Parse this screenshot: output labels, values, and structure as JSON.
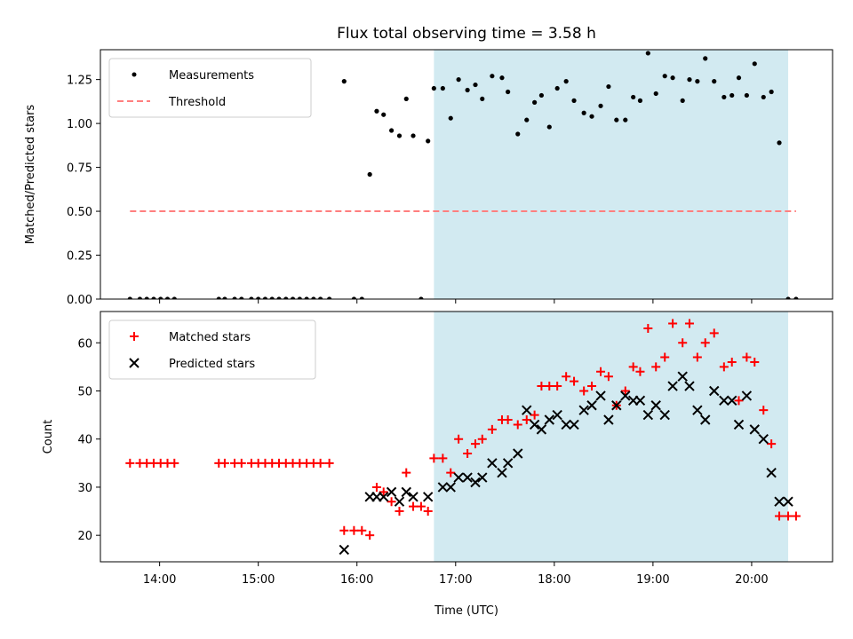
{
  "colors": {
    "highlight": "#add8e6",
    "threshold": "#ff7f7f",
    "measurement": "#000000",
    "matched": "#ff0000",
    "predicted": "#000000"
  },
  "chart_data": {
    "type": "scatter",
    "title": "Flux total observing time = 3.58 h",
    "xlabel": "Time (UTC)",
    "xlim": [
      13.4,
      20.82
    ],
    "x_ticks": [
      14,
      15,
      16,
      17,
      18,
      19,
      20
    ],
    "x_tick_labels": [
      "14:00",
      "15:00",
      "16:00",
      "17:00",
      "18:00",
      "19:00",
      "20:00"
    ],
    "highlight_span": [
      16.78,
      20.37
    ],
    "panels": [
      {
        "ylabel": "Matched/Predicted stars",
        "ylim": [
          0,
          1.42
        ],
        "y_ticks": [
          0,
          0.25,
          0.5,
          0.75,
          1.0,
          1.25
        ],
        "y_tick_labels": [
          "0.00",
          "0.25",
          "0.50",
          "0.75",
          "1.00",
          "1.25"
        ],
        "legend": {
          "placement": "top-left",
          "entries": [
            "Measurements",
            "Threshold"
          ]
        },
        "threshold": {
          "name": "Threshold",
          "value": 0.5,
          "x_range": [
            13.7,
            20.45
          ]
        },
        "series": [
          {
            "name": "Measurements",
            "marker": "dot",
            "x": [
              13.7,
              13.8,
              13.87,
              13.94,
              14.01,
              14.08,
              14.15,
              14.6,
              14.66,
              14.76,
              14.83,
              14.93,
              15.0,
              15.07,
              15.14,
              15.21,
              15.28,
              15.35,
              15.42,
              15.49,
              15.56,
              15.63,
              15.72,
              15.87,
              15.97,
              16.05,
              16.13,
              16.2,
              16.27,
              16.35,
              16.43,
              16.5,
              16.57,
              16.65,
              16.72,
              16.78,
              16.87,
              16.95,
              17.03,
              17.12,
              17.2,
              17.27,
              17.37,
              17.47,
              17.53,
              17.63,
              17.72,
              17.8,
              17.87,
              17.95,
              18.03,
              18.12,
              18.2,
              18.3,
              18.38,
              18.47,
              18.55,
              18.63,
              18.72,
              18.8,
              18.87,
              18.95,
              19.03,
              19.12,
              19.2,
              19.3,
              19.37,
              19.45,
              19.53,
              19.62,
              19.72,
              19.8,
              19.87,
              19.95,
              20.03,
              20.12,
              20.2,
              20.28,
              20.37,
              20.45
            ],
            "y": [
              0,
              0,
              0,
              0,
              0,
              0,
              0,
              0,
              0,
              0,
              0,
              0,
              0,
              0,
              0,
              0,
              0,
              0,
              0,
              0,
              0,
              0,
              0,
              1.24,
              0,
              0,
              0.71,
              1.07,
              1.05,
              0.96,
              0.93,
              1.14,
              0.93,
              0,
              0.9,
              1.2,
              1.2,
              1.03,
              1.25,
              1.19,
              1.22,
              1.14,
              1.27,
              1.26,
              1.18,
              0.94,
              1.02,
              1.12,
              1.16,
              0.98,
              1.2,
              1.24,
              1.13,
              1.06,
              1.04,
              1.1,
              1.21,
              1.02,
              1.02,
              1.15,
              1.13,
              1.4,
              1.17,
              1.27,
              1.26,
              1.13,
              1.25,
              1.24,
              1.37,
              1.24,
              1.15,
              1.16,
              1.26,
              1.16,
              1.34,
              1.15,
              1.18,
              0.89,
              0,
              0
            ]
          }
        ]
      },
      {
        "ylabel": "Count",
        "ylim": [
          14.5,
          66.5
        ],
        "y_ticks": [
          20,
          30,
          40,
          50,
          60
        ],
        "y_tick_labels": [
          "20",
          "30",
          "40",
          "50",
          "60"
        ],
        "legend": {
          "placement": "top-left",
          "entries": [
            "Matched stars",
            "Predicted stars"
          ]
        },
        "series": [
          {
            "name": "Matched stars",
            "marker": "plus",
            "x": [
              13.7,
              13.8,
              13.87,
              13.94,
              14.01,
              14.08,
              14.15,
              14.6,
              14.66,
              14.76,
              14.83,
              14.93,
              15.0,
              15.07,
              15.14,
              15.21,
              15.28,
              15.35,
              15.42,
              15.49,
              15.56,
              15.63,
              15.72,
              15.87,
              15.97,
              16.05,
              16.13,
              16.2,
              16.27,
              16.35,
              16.43,
              16.5,
              16.57,
              16.65,
              16.72,
              16.78,
              16.87,
              16.95,
              17.03,
              17.12,
              17.2,
              17.27,
              17.37,
              17.47,
              17.53,
              17.63,
              17.72,
              17.8,
              17.87,
              17.95,
              18.03,
              18.12,
              18.2,
              18.3,
              18.38,
              18.47,
              18.55,
              18.63,
              18.72,
              18.8,
              18.87,
              18.95,
              19.03,
              19.12,
              19.2,
              19.3,
              19.37,
              19.45,
              19.53,
              19.62,
              19.72,
              19.8,
              19.87,
              19.95,
              20.03,
              20.12,
              20.2,
              20.28,
              20.37,
              20.45
            ],
            "y": [
              35,
              35,
              35,
              35,
              35,
              35,
              35,
              35,
              35,
              35,
              35,
              35,
              35,
              35,
              35,
              35,
              35,
              35,
              35,
              35,
              35,
              35,
              35,
              21,
              21,
              21,
              20,
              30,
              29,
              27,
              25,
              33,
              26,
              26,
              25,
              36,
              36,
              33,
              40,
              37,
              39,
              40,
              42,
              44,
              44,
              43,
              44,
              45,
              51,
              51,
              51,
              53,
              52,
              50,
              51,
              54,
              53,
              47,
              50,
              55,
              54,
              63,
              55,
              57,
              64,
              60,
              64,
              57,
              60,
              62,
              55,
              56,
              48,
              57,
              56,
              46,
              39,
              24,
              24,
              24
            ]
          },
          {
            "name": "Predicted stars",
            "marker": "x",
            "x": [
              15.87,
              16.13,
              16.2,
              16.27,
              16.35,
              16.43,
              16.5,
              16.57,
              16.72,
              16.87,
              16.95,
              17.03,
              17.12,
              17.2,
              17.27,
              17.37,
              17.47,
              17.53,
              17.63,
              17.72,
              17.8,
              17.87,
              17.95,
              18.03,
              18.12,
              18.2,
              18.3,
              18.38,
              18.47,
              18.55,
              18.63,
              18.72,
              18.8,
              18.87,
              18.95,
              19.03,
              19.12,
              19.2,
              19.3,
              19.37,
              19.45,
              19.53,
              19.62,
              19.72,
              19.8,
              19.87,
              19.95,
              20.03,
              20.12,
              20.2,
              20.28,
              20.37
            ],
            "y": [
              17,
              28,
              28,
              28,
              29,
              27,
              29,
              28,
              28,
              30,
              30,
              32,
              32,
              31,
              32,
              35,
              33,
              35,
              37,
              46,
              43,
              42,
              44,
              45,
              43,
              43,
              46,
              47,
              49,
              44,
              47,
              49,
              48,
              48,
              45,
              47,
              45,
              51,
              53,
              51,
              46,
              44,
              50,
              48,
              48,
              43,
              49,
              42,
              40,
              33,
              27,
              27
            ]
          }
        ]
      }
    ]
  }
}
